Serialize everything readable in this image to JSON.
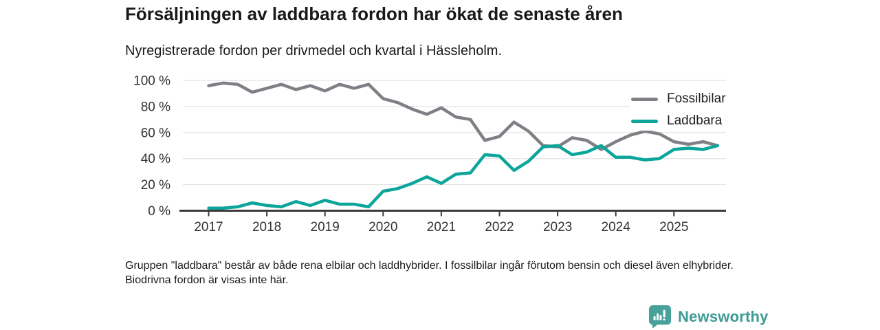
{
  "header": {
    "title": "Försäljningen av laddbara fordon har ökat de senaste åren",
    "subtitle": "Nyregistrerade fordon per drivmedel och kvartal i Hässleholm."
  },
  "chart_data": {
    "type": "line",
    "x_quarters": [
      "2017 K1",
      "2017 K2",
      "2017 K3",
      "2017 K4",
      "2018 K1",
      "2018 K2",
      "2018 K3",
      "2018 K4",
      "2019 K1",
      "2019 K2",
      "2019 K3",
      "2019 K4",
      "2020 K1",
      "2020 K2",
      "2020 K3",
      "2020 K4",
      "2021 K1",
      "2021 K2",
      "2021 K3",
      "2021 K4",
      "2022 K1",
      "2022 K2",
      "2022 K3",
      "2022 K4",
      "2023 K1",
      "2023 K2",
      "2023 K3",
      "2023 K4",
      "2024 K1",
      "2024 K2",
      "2024 K3",
      "2024 K4",
      "2025 K1",
      "2025 K2",
      "2025 K3",
      "2025 K4"
    ],
    "series": [
      {
        "name": "Fossilbilar",
        "color": "#7F7F85",
        "values": [
          96,
          98,
          97,
          91,
          94,
          97,
          93,
          96,
          92,
          97,
          94,
          97,
          86,
          83,
          78,
          74,
          79,
          72,
          70,
          54,
          57,
          68,
          61,
          50,
          49,
          56,
          54,
          47,
          53,
          58,
          61,
          59,
          53,
          51,
          53,
          50
        ]
      },
      {
        "name": "Laddbara",
        "color": "#0CA59B",
        "values": [
          2,
          2,
          3,
          6,
          4,
          3,
          7,
          4,
          8,
          5,
          5,
          3,
          15,
          17,
          21,
          26,
          21,
          28,
          29,
          43,
          42,
          31,
          38,
          49,
          50,
          43,
          45,
          50,
          41,
          41,
          39,
          40,
          47,
          48,
          47,
          50
        ]
      }
    ],
    "y_ticks": [
      {
        "value": 0,
        "label": "0 %"
      },
      {
        "value": 20,
        "label": "20 %"
      },
      {
        "value": 40,
        "label": "40 %"
      },
      {
        "value": 60,
        "label": "60 %"
      },
      {
        "value": 80,
        "label": "80 %"
      },
      {
        "value": 100,
        "label": "100 %"
      }
    ],
    "x_ticks": [
      "2017",
      "2018",
      "2019",
      "2020",
      "2021",
      "2022",
      "2023",
      "2024",
      "2025"
    ],
    "ylim": [
      0,
      100
    ],
    "grid": "horizontal",
    "legend_position": "top-right",
    "unit": "%"
  },
  "footnote": {
    "text": "Gruppen \"laddbara\" består av både rena elbilar och laddhybrider. I fossilbilar ingår förutom bensin och diesel även elhybrider. Biodrivna fordon är visas inte här."
  },
  "logo": {
    "text": "Newsworthy",
    "icon": "bar-chart-badge-icon",
    "color": "#3E9C94",
    "badge_color": "#47A09A"
  }
}
